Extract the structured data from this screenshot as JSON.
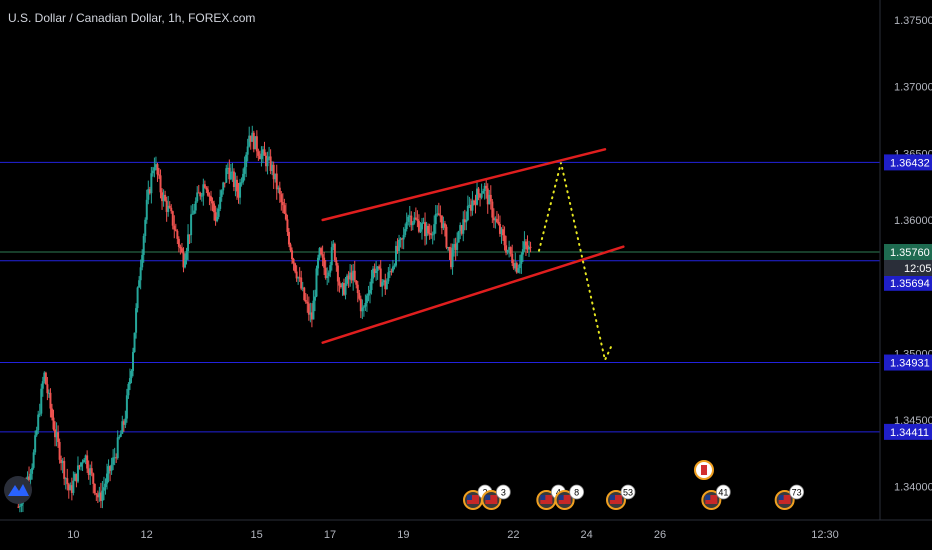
{
  "chart_title": "U.S. Dollar / Canadian Dollar, 1h, FOREX.com",
  "colors": {
    "background": "#000000",
    "candle_up": "#26a69a",
    "candle_down": "#ef5350",
    "hline": "#2222dd",
    "current_line": "#2e7d55",
    "channel": "#e01e1e",
    "projection": "#e8e820",
    "axis_text": "#b2b5be",
    "label_blue": "#1f1fc8",
    "label_green": "#1e6b50"
  },
  "chart_data": {
    "type": "candlestick",
    "symbol": "USDCAD",
    "timeframe": "1h",
    "ylim": [
      1.3375,
      1.3765
    ],
    "y_ticks": [
      "1.37500",
      "1.37000",
      "1.36500",
      "1.36000",
      "1.35500",
      "1.35000",
      "1.34500",
      "1.34000"
    ],
    "x_ticks": [
      "10",
      "12",
      "15",
      "17",
      "19",
      "22",
      "24",
      "26",
      "12:30"
    ],
    "horizontal_levels": [
      {
        "price": 1.36432,
        "label": "1.36432"
      },
      {
        "price": 1.35694,
        "label": "1.35694"
      },
      {
        "price": 1.34931,
        "label": "1.34931"
      },
      {
        "price": 1.34411,
        "label": "1.34411"
      }
    ],
    "extra_price_labels": [
      "1.35694"
    ],
    "current_price": {
      "price": 1.3576,
      "label": "1.35760",
      "countdown": "12:05"
    },
    "channel": {
      "upper": [
        {
          "t": 16.8,
          "p": 1.36
        },
        {
          "t": 24.5,
          "p": 1.3653
        }
      ],
      "lower": [
        {
          "t": 16.8,
          "p": 1.3508
        },
        {
          "t": 25.0,
          "p": 1.358
        }
      ]
    },
    "projection": [
      {
        "t": 22.7,
        "p": 1.3577
      },
      {
        "t": 23.3,
        "p": 1.3643
      },
      {
        "t": 24.5,
        "p": 1.3495
      },
      {
        "t": 24.7,
        "p": 1.3507
      }
    ],
    "series": [
      {
        "t": 8.5,
        "p": 1.3385
      },
      {
        "t": 8.9,
        "p": 1.342
      },
      {
        "t": 9.2,
        "p": 1.3485
      },
      {
        "t": 9.5,
        "p": 1.344
      },
      {
        "t": 9.9,
        "p": 1.3395
      },
      {
        "t": 10.3,
        "p": 1.3425
      },
      {
        "t": 10.7,
        "p": 1.339
      },
      {
        "t": 11.1,
        "p": 1.342
      },
      {
        "t": 11.4,
        "p": 1.345
      },
      {
        "t": 11.6,
        "p": 1.3495
      },
      {
        "t": 11.8,
        "p": 1.356
      },
      {
        "t": 12.0,
        "p": 1.361
      },
      {
        "t": 12.2,
        "p": 1.3645
      },
      {
        "t": 12.4,
        "p": 1.362
      },
      {
        "t": 12.7,
        "p": 1.36
      },
      {
        "t": 13.0,
        "p": 1.357
      },
      {
        "t": 13.3,
        "p": 1.361
      },
      {
        "t": 13.6,
        "p": 1.363
      },
      {
        "t": 13.9,
        "p": 1.36
      },
      {
        "t": 14.2,
        "p": 1.364
      },
      {
        "t": 14.5,
        "p": 1.362
      },
      {
        "t": 14.8,
        "p": 1.3665
      },
      {
        "t": 15.1,
        "p": 1.365
      },
      {
        "t": 15.4,
        "p": 1.364
      },
      {
        "t": 15.7,
        "p": 1.361
      },
      {
        "t": 16.0,
        "p": 1.357
      },
      {
        "t": 16.3,
        "p": 1.354
      },
      {
        "t": 16.5,
        "p": 1.3525
      },
      {
        "t": 16.7,
        "p": 1.3575
      },
      {
        "t": 16.9,
        "p": 1.356
      },
      {
        "t": 17.1,
        "p": 1.358
      },
      {
        "t": 17.3,
        "p": 1.3545
      },
      {
        "t": 17.6,
        "p": 1.356
      },
      {
        "t": 17.9,
        "p": 1.353
      },
      {
        "t": 18.2,
        "p": 1.3565
      },
      {
        "t": 18.5,
        "p": 1.355
      },
      {
        "t": 18.8,
        "p": 1.3575
      },
      {
        "t": 19.0,
        "p": 1.3585
      },
      {
        "t": 19.1,
        "p": 1.3605
      },
      {
        "t": 19.3,
        "p": 1.36
      },
      {
        "t": 19.7,
        "p": 1.359
      },
      {
        "t": 20.0,
        "p": 1.3605
      },
      {
        "t": 20.3,
        "p": 1.357
      },
      {
        "t": 20.6,
        "p": 1.3595
      },
      {
        "t": 20.9,
        "p": 1.3615
      },
      {
        "t": 21.2,
        "p": 1.3625
      },
      {
        "t": 21.5,
        "p": 1.36
      },
      {
        "t": 21.8,
        "p": 1.358
      },
      {
        "t": 22.1,
        "p": 1.3565
      },
      {
        "t": 22.3,
        "p": 1.358
      },
      {
        "t": 22.5,
        "p": 1.3576
      }
    ]
  },
  "events": [
    {
      "t": 20.9,
      "count": "2"
    },
    {
      "t": 21.4,
      "count": "3"
    },
    {
      "t": 22.9,
      "count": "4"
    },
    {
      "t": 23.4,
      "count": "8"
    },
    {
      "t": 24.8,
      "count": "53"
    },
    {
      "t": 27.4,
      "count": "41"
    },
    {
      "t": 29.4,
      "count": "73"
    }
  ],
  "event_flag": {
    "t": 27.2
  }
}
